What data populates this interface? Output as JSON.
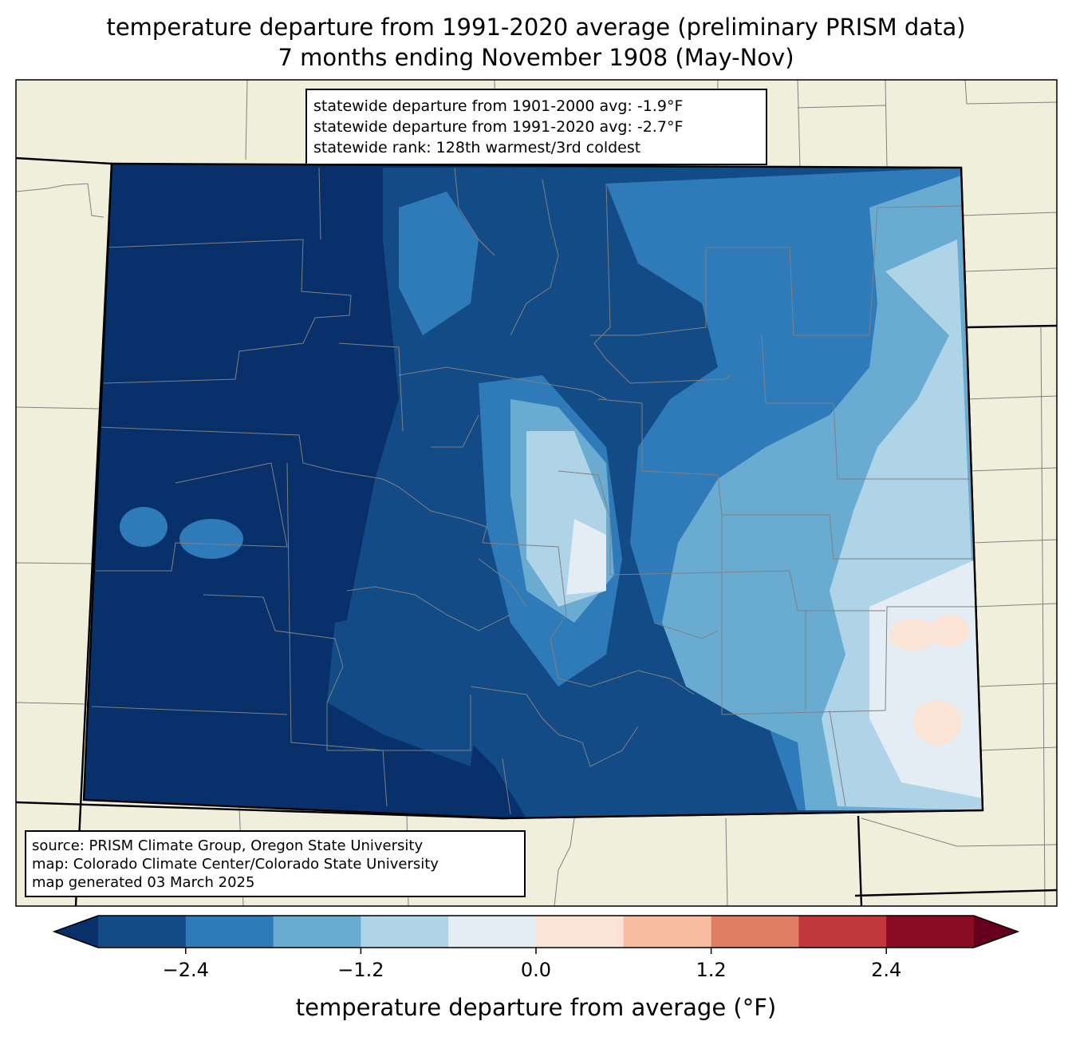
{
  "title": {
    "line1": "temperature departure from 1991-2020 average (preliminary PRISM data)",
    "line2": "7 months ending November 1908 (May-Nov)"
  },
  "stats": {
    "line1": "statewide departure from 1901-2000 avg: -1.9°F",
    "line2": "statewide departure from 1991-2020 avg: -2.7°F",
    "line3": "statewide rank: 128th warmest/3rd coldest"
  },
  "source": {
    "line1": "source: PRISM Climate Group, Oregon State University",
    "line2": "map: Colorado Climate Center/Colorado State University",
    "line3": "map generated 03 March 2025"
  },
  "colorbar": {
    "label": "temperature departure from average (°F)",
    "ticks": [
      "−2.4",
      "−1.2",
      "0.0",
      "1.2",
      "2.4"
    ],
    "colors": [
      "#08306b",
      "#134b87",
      "#2f7ab8",
      "#6aabd2",
      "#b0d4e7",
      "#e4edf4",
      "#fbe3d6",
      "#f8bca0",
      "#e17e66",
      "#c0373c",
      "#8a0c24",
      "#67001f"
    ]
  },
  "map_colors": {
    "background": "#efefdc",
    "border": "#000000",
    "county_lines": "#808080"
  }
}
